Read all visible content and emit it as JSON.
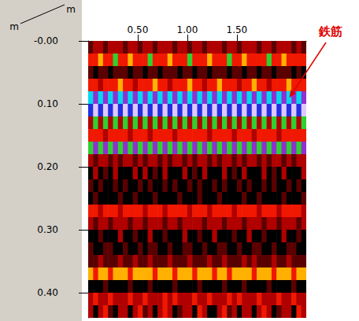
{
  "chart_data": {
    "type": "heatmap",
    "x_label": "m",
    "y_label": "m",
    "x": [
      0.025,
      0.075,
      0.125,
      0.175,
      0.225,
      0.275,
      0.325,
      0.375,
      0.425,
      0.475,
      0.525,
      0.575,
      0.625,
      0.675,
      0.725,
      0.775,
      0.825,
      0.875,
      0.925,
      0.975,
      1.025,
      1.075,
      1.125,
      1.175,
      1.225,
      1.275,
      1.325,
      1.375,
      1.425,
      1.475,
      1.525,
      1.575,
      1.625,
      1.675,
      1.725,
      1.775,
      1.825,
      1.875,
      1.925,
      1.975,
      2.025,
      2.075,
      2.125,
      2.175
    ],
    "y": [
      0.01,
      0.03,
      0.05,
      0.07,
      0.09,
      0.11,
      0.13,
      0.15,
      0.17,
      0.19,
      0.21,
      0.23,
      0.25,
      0.27,
      0.29,
      0.31,
      0.33,
      0.35,
      0.37,
      0.39,
      0.41,
      0.43
    ],
    "values": [
      [
        1,
        2,
        2,
        1,
        2,
        2,
        2,
        1,
        2,
        2,
        1,
        2,
        2,
        1,
        2,
        2,
        2,
        1,
        2,
        2,
        1,
        2,
        2,
        1,
        2,
        2,
        2,
        1,
        2,
        2,
        1,
        2,
        2,
        2,
        1,
        2,
        2,
        1,
        2,
        2,
        2,
        1,
        2,
        1
      ],
      [
        3,
        3,
        4,
        3,
        3,
        5,
        3,
        3,
        4,
        3,
        3,
        3,
        5,
        3,
        3,
        3,
        4,
        3,
        3,
        3,
        5,
        3,
        3,
        3,
        4,
        3,
        3,
        3,
        5,
        3,
        3,
        4,
        3,
        3,
        3,
        3,
        5,
        3,
        3,
        4,
        3,
        3,
        3,
        3
      ],
      [
        1,
        0,
        1,
        1,
        0,
        1,
        1,
        1,
        0,
        1,
        1,
        0,
        1,
        1,
        0,
        1,
        1,
        1,
        0,
        1,
        1,
        0,
        1,
        1,
        0,
        1,
        1,
        1,
        0,
        1,
        1,
        0,
        1,
        1,
        0,
        1,
        1,
        0,
        1,
        1,
        1,
        0,
        1,
        0
      ],
      [
        3,
        3,
        2,
        3,
        3,
        3,
        4,
        3,
        3,
        2,
        3,
        3,
        3,
        4,
        3,
        3,
        2,
        3,
        3,
        3,
        4,
        3,
        3,
        2,
        3,
        3,
        4,
        3,
        3,
        3,
        2,
        3,
        3,
        4,
        3,
        3,
        2,
        3,
        3,
        3,
        4,
        3,
        3,
        3
      ],
      [
        6,
        8,
        6,
        8,
        6,
        8,
        6,
        8,
        6,
        8,
        6,
        8,
        6,
        8,
        6,
        8,
        6,
        8,
        6,
        8,
        6,
        8,
        6,
        8,
        6,
        8,
        6,
        8,
        6,
        8,
        6,
        8,
        6,
        8,
        6,
        8,
        6,
        8,
        6,
        8,
        6,
        8,
        6,
        8
      ],
      [
        7,
        9,
        7,
        9,
        7,
        9,
        7,
        9,
        7,
        9,
        7,
        9,
        7,
        9,
        7,
        9,
        7,
        9,
        7,
        9,
        7,
        9,
        7,
        9,
        7,
        9,
        7,
        9,
        7,
        9,
        7,
        9,
        7,
        9,
        7,
        9,
        7,
        9,
        7,
        9,
        7,
        9,
        7,
        9
      ],
      [
        2,
        5,
        2,
        5,
        2,
        5,
        2,
        5,
        2,
        5,
        2,
        5,
        2,
        5,
        2,
        5,
        2,
        5,
        2,
        5,
        2,
        5,
        2,
        5,
        2,
        5,
        2,
        5,
        2,
        5,
        2,
        5,
        2,
        5,
        2,
        5,
        2,
        5,
        2,
        5,
        2,
        5,
        2,
        5
      ],
      [
        3,
        3,
        3,
        2,
        3,
        3,
        3,
        3,
        2,
        3,
        3,
        3,
        2,
        3,
        3,
        3,
        3,
        2,
        3,
        3,
        3,
        3,
        3,
        3,
        2,
        3,
        3,
        3,
        3,
        2,
        3,
        3,
        3,
        2,
        3,
        3,
        3,
        3,
        2,
        3,
        3,
        3,
        3,
        3
      ],
      [
        5,
        8,
        5,
        8,
        5,
        8,
        5,
        8,
        5,
        8,
        5,
        8,
        5,
        8,
        5,
        8,
        5,
        8,
        5,
        8,
        5,
        8,
        5,
        8,
        5,
        8,
        5,
        8,
        5,
        8,
        5,
        8,
        5,
        8,
        5,
        8,
        5,
        8,
        5,
        8,
        5,
        8,
        5,
        8
      ],
      [
        2,
        1,
        2,
        2,
        1,
        2,
        1,
        2,
        2,
        1,
        2,
        1,
        2,
        2,
        1,
        2,
        1,
        2,
        2,
        1,
        2,
        1,
        2,
        2,
        1,
        2,
        1,
        2,
        2,
        1,
        2,
        1,
        2,
        2,
        1,
        2,
        1,
        2,
        2,
        1,
        2,
        1,
        2,
        2
      ],
      [
        0,
        2,
        0,
        1,
        0,
        2,
        0,
        0,
        0,
        2,
        0,
        2,
        0,
        1,
        0,
        2,
        0,
        0,
        0,
        2,
        0,
        1,
        0,
        2,
        0,
        0,
        0,
        2,
        0,
        1,
        0,
        2,
        0,
        0,
        0,
        2,
        0,
        1,
        0,
        2,
        0,
        0,
        0,
        2
      ],
      [
        1,
        0,
        1,
        0,
        0,
        1,
        0,
        1,
        0,
        0,
        1,
        0,
        1,
        0,
        0,
        1,
        0,
        1,
        0,
        0,
        1,
        0,
        1,
        0,
        0,
        1,
        0,
        1,
        0,
        0,
        1,
        0,
        1,
        0,
        0,
        1,
        0,
        1,
        0,
        0,
        1,
        0,
        1,
        0
      ],
      [
        0,
        1,
        0,
        0,
        0,
        0,
        1,
        0,
        0,
        1,
        0,
        0,
        0,
        1,
        0,
        0,
        0,
        0,
        1,
        0,
        0,
        0,
        1,
        0,
        0,
        0,
        1,
        0,
        0,
        0,
        0,
        1,
        0,
        0,
        1,
        0,
        0,
        0,
        0,
        1,
        0,
        0,
        0,
        1
      ],
      [
        3,
        3,
        2,
        3,
        3,
        3,
        2,
        3,
        3,
        3,
        3,
        2,
        3,
        3,
        3,
        2,
        3,
        3,
        3,
        3,
        2,
        3,
        3,
        3,
        2,
        3,
        3,
        3,
        3,
        2,
        3,
        3,
        3,
        3,
        2,
        3,
        3,
        3,
        2,
        3,
        3,
        3,
        3,
        2
      ],
      [
        2,
        1,
        2,
        2,
        1,
        2,
        2,
        2,
        1,
        2,
        2,
        1,
        2,
        2,
        2,
        1,
        2,
        2,
        1,
        2,
        2,
        2,
        2,
        1,
        2,
        2,
        2,
        1,
        2,
        2,
        2,
        1,
        2,
        2,
        2,
        1,
        2,
        2,
        1,
        2,
        2,
        2,
        1,
        2
      ],
      [
        0,
        0,
        1,
        0,
        0,
        0,
        2,
        0,
        0,
        1,
        0,
        0,
        2,
        0,
        0,
        1,
        0,
        0,
        0,
        2,
        0,
        0,
        1,
        0,
        0,
        2,
        0,
        0,
        0,
        1,
        0,
        0,
        2,
        0,
        0,
        1,
        0,
        0,
        0,
        2,
        0,
        0,
        1,
        0
      ],
      [
        1,
        0,
        0,
        1,
        1,
        0,
        0,
        1,
        0,
        0,
        1,
        0,
        1,
        1,
        0,
        0,
        1,
        0,
        0,
        1,
        1,
        0,
        0,
        1,
        0,
        0,
        1,
        1,
        0,
        0,
        1,
        0,
        0,
        1,
        1,
        0,
        0,
        1,
        0,
        0,
        1,
        1,
        0,
        0
      ],
      [
        1,
        1,
        2,
        1,
        1,
        1,
        2,
        1,
        1,
        2,
        1,
        1,
        2,
        1,
        1,
        1,
        2,
        1,
        1,
        1,
        2,
        1,
        1,
        1,
        2,
        1,
        1,
        2,
        1,
        1,
        1,
        2,
        1,
        2,
        1,
        1,
        1,
        2,
        1,
        1,
        2,
        1,
        1,
        1
      ],
      [
        4,
        3,
        4,
        4,
        3,
        4,
        4,
        4,
        3,
        4,
        4,
        4,
        4,
        3,
        4,
        4,
        4,
        3,
        4,
        4,
        4,
        3,
        4,
        4,
        4,
        3,
        4,
        4,
        3,
        4,
        4,
        4,
        4,
        3,
        4,
        4,
        4,
        3,
        4,
        4,
        4,
        3,
        4,
        4
      ],
      [
        0,
        0,
        0,
        1,
        0,
        0,
        0,
        0,
        1,
        0,
        0,
        0,
        1,
        0,
        0,
        0,
        0,
        1,
        0,
        0,
        0,
        0,
        1,
        0,
        0,
        0,
        0,
        1,
        0,
        0,
        0,
        1,
        0,
        0,
        0,
        0,
        1,
        0,
        0,
        0,
        0,
        1,
        0,
        0
      ],
      [
        2,
        3,
        2,
        2,
        3,
        2,
        2,
        2,
        3,
        2,
        2,
        3,
        2,
        2,
        2,
        3,
        2,
        3,
        2,
        2,
        2,
        3,
        2,
        2,
        3,
        2,
        2,
        2,
        3,
        2,
        3,
        2,
        2,
        2,
        3,
        2,
        2,
        2,
        3,
        2,
        2,
        3,
        2,
        2
      ],
      [
        2,
        0,
        2,
        3,
        1,
        0,
        2,
        2,
        0,
        2,
        3,
        1,
        2,
        0,
        2,
        3,
        2,
        0,
        1,
        2,
        2,
        0,
        3,
        2,
        0,
        0,
        2,
        3,
        1,
        2,
        0,
        2,
        2,
        0,
        2,
        3,
        2,
        0,
        1,
        2,
        2,
        0,
        3,
        2
      ]
    ],
    "zlim": [
      0,
      9
    ],
    "xlim": [
      0,
      2.2
    ],
    "xticks": [
      {
        "value": 0.5,
        "label": "0.50"
      },
      {
        "value": 1.0,
        "label": "1.00"
      },
      {
        "value": 1.5,
        "label": "1.50"
      }
    ],
    "ylim": [
      0,
      0.44
    ],
    "yticks": [
      {
        "value": 0,
        "label": "-0.00"
      },
      {
        "value": 0.1,
        "label": "0.10"
      },
      {
        "value": 0.2,
        "label": "0.20"
      },
      {
        "value": 0.3,
        "label": "0.30"
      },
      {
        "value": 0.4,
        "label": "0.40"
      }
    ],
    "annotations": [
      {
        "text": "鉄筋",
        "x": 2.03,
        "y": 0.09
      }
    ]
  }
}
